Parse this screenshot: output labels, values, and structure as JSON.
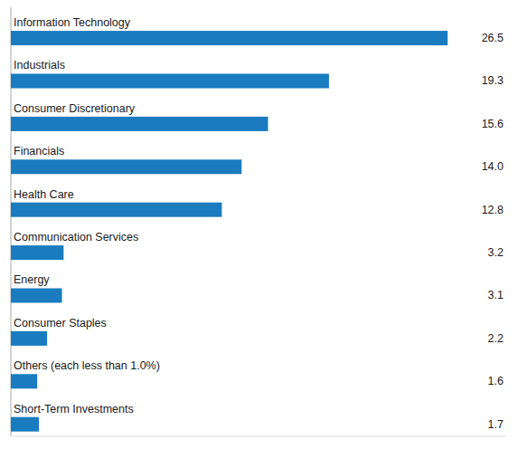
{
  "chart_data": {
    "type": "bar",
    "orientation": "horizontal",
    "categories": [
      "Short-Term Investments",
      "Others (each less than 1.0%)",
      "Consumer Staples",
      "Energy",
      "Communication Services",
      "Health Care",
      "Financials",
      "Consumer Discretionary",
      "Industrials",
      "Information Technology"
    ],
    "values": [
      1.7,
      1.6,
      2.2,
      3.1,
      3.2,
      12.8,
      14.0,
      15.6,
      19.3,
      26.5
    ],
    "value_labels": [
      "1.7",
      "1.6",
      "2.2",
      "3.1",
      "3.2",
      "12.8",
      "14.0",
      "15.6",
      "19.3",
      "26.5"
    ],
    "color": "#1a7bbf",
    "xlim": [
      0,
      30
    ],
    "data_labels": true,
    "tick_labels": false,
    "grid": false
  }
}
